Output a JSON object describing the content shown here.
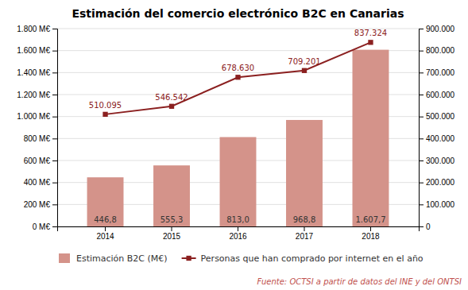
{
  "chart_data": {
    "type": "bar",
    "title": "Estimación del comercio electrónico B2C en Canarias",
    "categories": [
      "2014",
      "2015",
      "2016",
      "2017",
      "2018"
    ],
    "series": [
      {
        "name": "Estimación B2C (M€)",
        "type": "bar",
        "color": "#d4938a",
        "values": [
          446.8,
          555.3,
          813.0,
          968.8,
          1607.7
        ],
        "value_labels": [
          "446,8",
          "555,3",
          "813,0",
          "968,8",
          "1.607,7"
        ]
      },
      {
        "name": "Personas que han comprado por internet en el año",
        "type": "line",
        "axis": "y2",
        "color": "#8b2020",
        "marker": "square",
        "values": [
          510095,
          546542,
          678630,
          709201,
          837324
        ],
        "value_labels": [
          "510.095",
          "546.542",
          "678.630",
          "709.201",
          "837.324"
        ]
      }
    ],
    "ylim": [
      0,
      1800
    ],
    "yticks": [
      {
        "value": 0,
        "label": "0 M€"
      },
      {
        "value": 200,
        "label": "200 M€"
      },
      {
        "value": 400,
        "label": "400 M€"
      },
      {
        "value": 600,
        "label": "600 M€"
      },
      {
        "value": 800,
        "label": "800 M€"
      },
      {
        "value": 1000,
        "label": "1.000 M€"
      },
      {
        "value": 1200,
        "label": "1.200 M€"
      },
      {
        "value": 1400,
        "label": "1.400 M€"
      },
      {
        "value": 1600,
        "label": "1.600 M€"
      },
      {
        "value": 1800,
        "label": "1.800 M€"
      }
    ],
    "y2lim": [
      0,
      900000
    ],
    "y2ticks": [
      0,
      {
        "value": 100000,
        "label": "100.000"
      },
      {
        "value": 200000,
        "label": "200.000"
      },
      {
        "value": 300000,
        "label": "300.000"
      },
      {
        "value": 400000,
        "label": "400.000"
      },
      {
        "value": 500000,
        "label": "500.000"
      },
      {
        "value": 600000,
        "label": "600.000"
      },
      {
        "value": 700000,
        "label": "700.000"
      },
      {
        "value": 800000,
        "label": "800.000"
      },
      {
        "value": 900000,
        "label": "900.000"
      }
    ],
    "grid": true,
    "data_labels": true,
    "legend": "bottom",
    "annotations": [
      {
        "text": "Fuente: OCTSI a partir de datos del INE y del ONTSI",
        "color": "#c0504d"
      }
    ]
  }
}
